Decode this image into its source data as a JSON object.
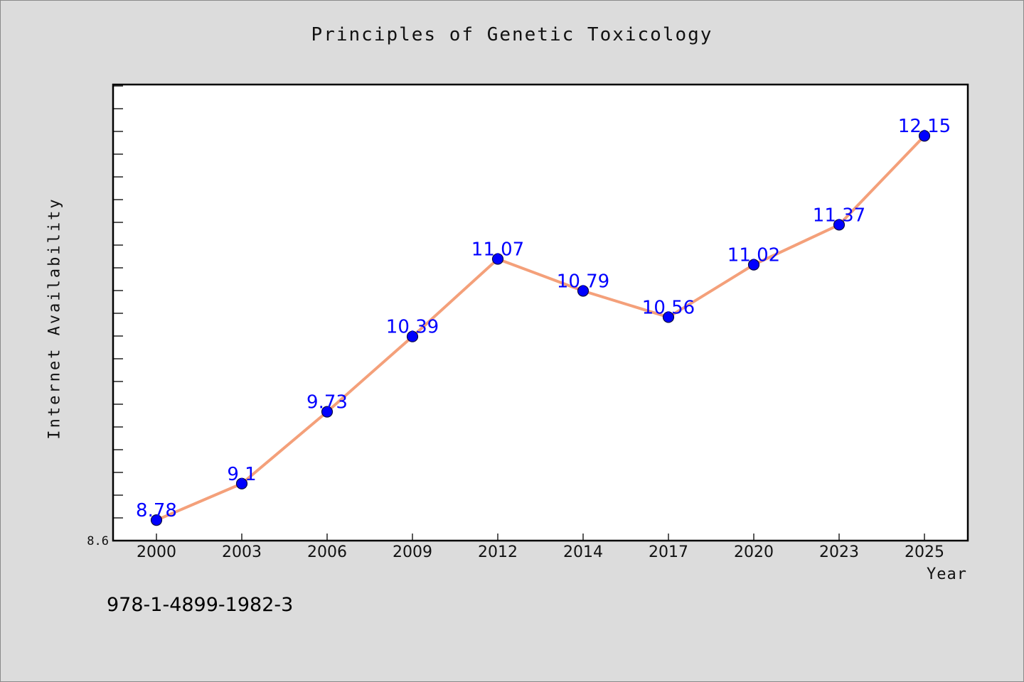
{
  "chart_data": {
    "type": "line",
    "title": "Principles of Genetic Toxicology",
    "xlabel": "Year",
    "ylabel": "Internet Availability",
    "categories": [
      "2000",
      "2003",
      "2006",
      "2009",
      "2012",
      "2014",
      "2017",
      "2020",
      "2023",
      "2025"
    ],
    "series": [
      {
        "values": [
          8.78,
          9.1,
          9.73,
          10.39,
          11.07,
          10.79,
          10.56,
          11.02,
          11.37,
          12.15
        ],
        "data_labels": [
          "8.78",
          "9.1",
          "9.73",
          "10.39",
          "11.07",
          "10.79",
          "10.56",
          "11.02",
          "11.37",
          "12.15"
        ]
      }
    ],
    "ylim": [
      8.6,
      12.6
    ],
    "y_tick_labels": [
      "8.6"
    ],
    "grid": false,
    "legend": "none",
    "colors": {
      "line": "#f4a07a",
      "marker": "#0000ff",
      "label": "#0000ff",
      "background": "#dcdcdc",
      "plot_background": "#ffffff"
    }
  },
  "footer": {
    "isbn": "978-1-4899-1982-3"
  }
}
